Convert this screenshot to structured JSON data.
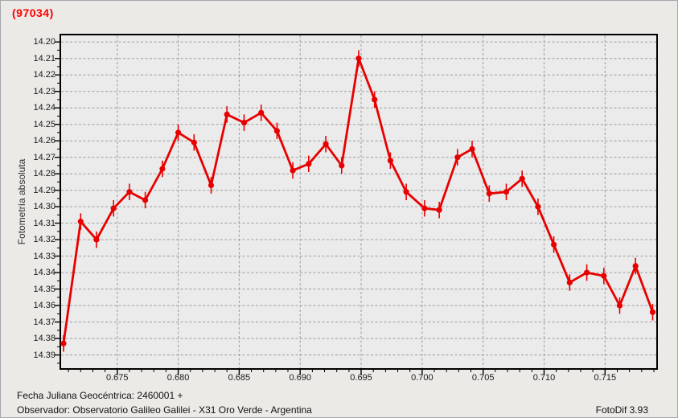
{
  "header": {
    "title": "(97034)"
  },
  "footer": {
    "julian_date": "Fecha Juliana Geocéntrica: 2460001 +",
    "observer": "Observador: Observatorio Galileo Galilei - X31 Oro Verde - Argentina",
    "app_version": "FotoDif 3.93"
  },
  "colors": {
    "series": "#e80000",
    "title": "#ff0000",
    "grid": "#9c9c9c",
    "axis": "#000000",
    "background": "#ebeae7",
    "plot_background": "#ebebeb",
    "text": "#1a1a1a"
  },
  "chart_data": {
    "type": "line",
    "title": "(97034)",
    "ylabel": "Fotometría absoluta",
    "xlabel_note": "Fecha Juliana Geocéntrica: 2460001 +",
    "y_inverted": true,
    "grid": true,
    "legend": "none",
    "xlim": [
      0.6704,
      0.7192
    ],
    "ylim": [
      14.196,
      14.398
    ],
    "x_ticks": [
      "0.675",
      "0.680",
      "0.685",
      "0.690",
      "0.695",
      "0.700",
      "0.705",
      "0.710",
      "0.715"
    ],
    "x_minor_step": 0.001,
    "y_ticks": [
      "14.20",
      "14.21",
      "14.22",
      "14.23",
      "14.24",
      "14.25",
      "14.26",
      "14.27",
      "14.28",
      "14.29",
      "14.30",
      "14.31",
      "14.32",
      "14.33",
      "14.34",
      "14.35",
      "14.36",
      "14.37",
      "14.38",
      "14.39"
    ],
    "y_minor_step": 0.005,
    "error_bar": 0.005,
    "marker": "circle",
    "series": [
      {
        "name": "(97034) fotometría absoluta",
        "color": "#e80000",
        "points": [
          [
            0.6706,
            14.383
          ],
          [
            0.672,
            14.309
          ],
          [
            0.6733,
            14.32
          ],
          [
            0.6747,
            14.301
          ],
          [
            0.676,
            14.291
          ],
          [
            0.6773,
            14.296
          ],
          [
            0.6787,
            14.277
          ],
          [
            0.68,
            14.255
          ],
          [
            0.6813,
            14.261
          ],
          [
            0.6827,
            14.287
          ],
          [
            0.684,
            14.244
          ],
          [
            0.6854,
            14.249
          ],
          [
            0.6868,
            14.243
          ],
          [
            0.6881,
            14.254
          ],
          [
            0.6894,
            14.278
          ],
          [
            0.6907,
            14.274
          ],
          [
            0.6921,
            14.262
          ],
          [
            0.6934,
            14.275
          ],
          [
            0.6948,
            14.21
          ],
          [
            0.6961,
            14.235
          ],
          [
            0.6974,
            14.272
          ],
          [
            0.6987,
            14.291
          ],
          [
            0.7002,
            14.301
          ],
          [
            0.7014,
            14.302
          ],
          [
            0.7029,
            14.27
          ],
          [
            0.7041,
            14.265
          ],
          [
            0.7055,
            14.292
          ],
          [
            0.7069,
            14.291
          ],
          [
            0.7082,
            14.283
          ],
          [
            0.7095,
            14.3
          ],
          [
            0.7108,
            14.323
          ],
          [
            0.7121,
            14.346
          ],
          [
            0.7135,
            14.34
          ],
          [
            0.7149,
            14.342
          ],
          [
            0.7162,
            14.36
          ],
          [
            0.7175,
            14.336
          ],
          [
            0.7189,
            14.364
          ]
        ]
      }
    ]
  }
}
